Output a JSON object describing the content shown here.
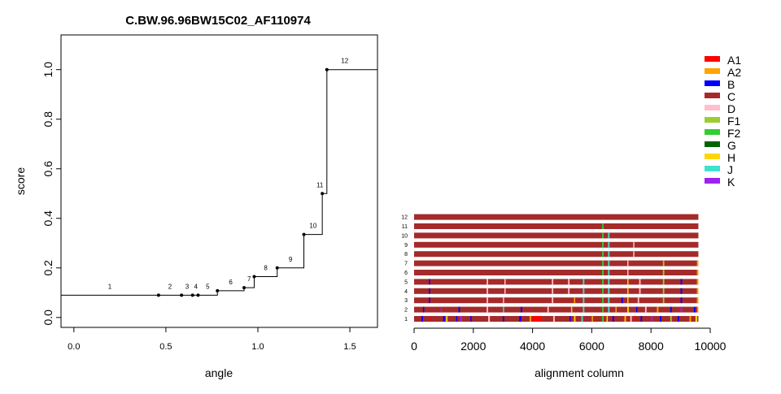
{
  "title": "C.BW.96.96BW15C02_AF110974",
  "colors": {
    "A1": "#ff0000",
    "A2": "#ffa500",
    "B": "#0000ff",
    "C": "#a52a2a",
    "D": "#ffc0cb",
    "F1": "#9acd32",
    "F2": "#32cd32",
    "G": "#006400",
    "H": "#ffd700",
    "J": "#40e0d0",
    "K": "#a020f0"
  },
  "chart_data": [
    {
      "type": "line",
      "step": true,
      "title": "C.BW.96.96BW15C02_AF110974",
      "xlabel": "angle",
      "ylabel": "score",
      "xlim": [
        -0.07,
        1.65
      ],
      "ylim": [
        -0.04,
        1.14
      ],
      "x_ticks": [
        "0.0",
        "0.5",
        "1.0",
        "1.5"
      ],
      "x_tick_values": [
        0.0,
        0.5,
        1.0,
        1.5
      ],
      "y_ticks": [
        "0.0",
        "0.2",
        "0.4",
        "0.6",
        "0.8",
        "1.0"
      ],
      "y_tick_values": [
        0.0,
        0.2,
        0.4,
        0.6,
        0.8,
        1.0
      ],
      "grid": false,
      "points": [
        {
          "label": "1",
          "x": 0.0,
          "y": 0.09
        },
        {
          "label": "2",
          "x": 0.46,
          "y": 0.09
        },
        {
          "label": "3",
          "x": 0.585,
          "y": 0.09
        },
        {
          "label": "4",
          "x": 0.645,
          "y": 0.09
        },
        {
          "label": "5",
          "x": 0.675,
          "y": 0.09
        },
        {
          "label": "6",
          "x": 0.78,
          "y": 0.108
        },
        {
          "label": "7",
          "x": 0.925,
          "y": 0.12
        },
        {
          "label": "8",
          "x": 0.98,
          "y": 0.165
        },
        {
          "label": "9",
          "x": 1.105,
          "y": 0.2
        },
        {
          "label": "10",
          "x": 1.25,
          "y": 0.335
        },
        {
          "label": "11",
          "x": 1.35,
          "y": 0.5
        },
        {
          "label": "12",
          "x": 1.375,
          "y": 1.0
        }
      ],
      "segments": [
        {
          "label": "1",
          "x0": -0.07,
          "x1": 0.46,
          "y": 0.09
        },
        {
          "label": "2",
          "x0": 0.46,
          "x1": 0.585,
          "y": 0.09
        },
        {
          "label": "3",
          "x0": 0.585,
          "x1": 0.645,
          "y": 0.09
        },
        {
          "label": "4",
          "x0": 0.645,
          "x1": 0.675,
          "y": 0.09
        },
        {
          "label": "5",
          "x0": 0.675,
          "x1": 0.78,
          "y": 0.09
        },
        {
          "label": "6",
          "x0": 0.78,
          "x1": 0.925,
          "y": 0.108
        },
        {
          "label": "7",
          "x0": 0.925,
          "x1": 0.98,
          "y": 0.12
        },
        {
          "label": "8",
          "x0": 0.98,
          "x1": 1.105,
          "y": 0.165
        },
        {
          "label": "9",
          "x0": 1.105,
          "x1": 1.25,
          "y": 0.2
        },
        {
          "label": "10",
          "x0": 1.25,
          "x1": 1.35,
          "y": 0.335
        },
        {
          "label": "11",
          "x0": 1.35,
          "x1": 1.375,
          "y": 0.5
        },
        {
          "label": "12",
          "x0": 1.375,
          "x1": 1.65,
          "y": 1.0
        }
      ]
    },
    {
      "type": "heatmap",
      "xlabel": "alignment column",
      "xlim": [
        0,
        10000
      ],
      "x_ticks": [
        "0",
        "2000",
        "4000",
        "6000",
        "8000",
        "10000"
      ],
      "x_tick_values": [
        0,
        2000,
        4000,
        6000,
        8000,
        10000
      ],
      "track_length": 9600,
      "base_subtype": "C",
      "rows": [
        {
          "label": "1",
          "segments": [
            {
              "s": 250,
              "e": 300,
              "t": "B"
            },
            {
              "s": 560,
              "e": 600,
              "t": "A1"
            },
            {
              "s": 980,
              "e": 1040,
              "t": "B"
            },
            {
              "s": 1080,
              "e": 1130,
              "t": "H"
            },
            {
              "s": 1420,
              "e": 1460,
              "t": "B"
            },
            {
              "s": 1550,
              "e": 1620,
              "t": "K"
            },
            {
              "s": 1900,
              "e": 1940,
              "t": "B"
            },
            {
              "s": 2500,
              "e": 2560,
              "t": "D"
            },
            {
              "s": 3000,
              "e": 3040,
              "t": "B"
            },
            {
              "s": 3550,
              "e": 3620,
              "t": "B"
            },
            {
              "s": 3900,
              "e": 3950,
              "t": "A2"
            },
            {
              "s": 4000,
              "e": 4300,
              "t": "A1"
            },
            {
              "s": 4700,
              "e": 4750,
              "t": "D"
            },
            {
              "s": 5250,
              "e": 5290,
              "t": "B"
            },
            {
              "s": 5400,
              "e": 5450,
              "t": "H"
            },
            {
              "s": 5650,
              "e": 5700,
              "t": "J"
            },
            {
              "s": 6000,
              "e": 6040,
              "t": "A2"
            },
            {
              "s": 6350,
              "e": 6400,
              "t": "F2"
            },
            {
              "s": 6500,
              "e": 6540,
              "t": "H"
            },
            {
              "s": 6700,
              "e": 6750,
              "t": "B"
            },
            {
              "s": 7100,
              "e": 7160,
              "t": "A2"
            },
            {
              "s": 7300,
              "e": 7350,
              "t": "D"
            },
            {
              "s": 7450,
              "e": 7500,
              "t": "A1"
            },
            {
              "s": 7650,
              "e": 7700,
              "t": "B"
            },
            {
              "s": 8000,
              "e": 8050,
              "t": "K"
            },
            {
              "s": 8300,
              "e": 8350,
              "t": "B"
            },
            {
              "s": 8650,
              "e": 8700,
              "t": "F1"
            },
            {
              "s": 8900,
              "e": 8950,
              "t": "B"
            },
            {
              "s": 9300,
              "e": 9350,
              "t": "A2"
            },
            {
              "s": 9500,
              "e": 9560,
              "t": "H"
            }
          ]
        },
        {
          "label": "2",
          "segments": [
            {
              "s": 300,
              "e": 340,
              "t": "B"
            },
            {
              "s": 900,
              "e": 940,
              "t": "K"
            },
            {
              "s": 1500,
              "e": 1550,
              "t": "B"
            },
            {
              "s": 2450,
              "e": 2500,
              "t": "D"
            },
            {
              "s": 3000,
              "e": 3040,
              "t": "J"
            },
            {
              "s": 3600,
              "e": 3650,
              "t": "B"
            },
            {
              "s": 4500,
              "e": 4550,
              "t": "D"
            },
            {
              "s": 5300,
              "e": 5340,
              "t": "H"
            },
            {
              "s": 5700,
              "e": 5750,
              "t": "J"
            },
            {
              "s": 6350,
              "e": 6400,
              "t": "F2"
            },
            {
              "s": 6550,
              "e": 6600,
              "t": "J"
            },
            {
              "s": 6800,
              "e": 6840,
              "t": "A2"
            },
            {
              "s": 7200,
              "e": 7250,
              "t": "H"
            },
            {
              "s": 7500,
              "e": 7540,
              "t": "B"
            },
            {
              "s": 7800,
              "e": 7850,
              "t": "D"
            },
            {
              "s": 8200,
              "e": 8250,
              "t": "A2"
            },
            {
              "s": 8650,
              "e": 8700,
              "t": "B"
            },
            {
              "s": 9000,
              "e": 9050,
              "t": "K"
            },
            {
              "s": 9450,
              "e": 9500,
              "t": "B"
            },
            {
              "s": 9560,
              "e": 9600,
              "t": "A2"
            }
          ]
        },
        {
          "label": "3",
          "segments": [
            {
              "s": 500,
              "e": 540,
              "t": "B"
            },
            {
              "s": 2450,
              "e": 2500,
              "t": "D"
            },
            {
              "s": 3000,
              "e": 3040,
              "t": "D"
            },
            {
              "s": 4650,
              "e": 4700,
              "t": "D"
            },
            {
              "s": 5400,
              "e": 5440,
              "t": "A2"
            },
            {
              "s": 5700,
              "e": 5750,
              "t": "J"
            },
            {
              "s": 6350,
              "e": 6400,
              "t": "F2"
            },
            {
              "s": 6550,
              "e": 6600,
              "t": "J"
            },
            {
              "s": 7000,
              "e": 7050,
              "t": "B"
            },
            {
              "s": 7200,
              "e": 7240,
              "t": "H"
            },
            {
              "s": 7550,
              "e": 7600,
              "t": "D"
            },
            {
              "s": 8400,
              "e": 8450,
              "t": "F1"
            },
            {
              "s": 9000,
              "e": 9050,
              "t": "B"
            },
            {
              "s": 9550,
              "e": 9600,
              "t": "A2"
            }
          ]
        },
        {
          "label": "4",
          "segments": [
            {
              "s": 500,
              "e": 540,
              "t": "B"
            },
            {
              "s": 2450,
              "e": 2500,
              "t": "D"
            },
            {
              "s": 3050,
              "e": 3090,
              "t": "D"
            },
            {
              "s": 4650,
              "e": 4700,
              "t": "D"
            },
            {
              "s": 5200,
              "e": 5250,
              "t": "D"
            },
            {
              "s": 5700,
              "e": 5750,
              "t": "J"
            },
            {
              "s": 6350,
              "e": 6400,
              "t": "F2"
            },
            {
              "s": 6550,
              "e": 6600,
              "t": "J"
            },
            {
              "s": 7200,
              "e": 7240,
              "t": "H"
            },
            {
              "s": 7600,
              "e": 7650,
              "t": "D"
            },
            {
              "s": 8400,
              "e": 8450,
              "t": "F1"
            },
            {
              "s": 9000,
              "e": 9050,
              "t": "B"
            },
            {
              "s": 9550,
              "e": 9600,
              "t": "A2"
            }
          ]
        },
        {
          "label": "5",
          "segments": [
            {
              "s": 500,
              "e": 540,
              "t": "B"
            },
            {
              "s": 2450,
              "e": 2500,
              "t": "D"
            },
            {
              "s": 3050,
              "e": 3090,
              "t": "D"
            },
            {
              "s": 4650,
              "e": 4700,
              "t": "D"
            },
            {
              "s": 5200,
              "e": 5250,
              "t": "D"
            },
            {
              "s": 5700,
              "e": 5750,
              "t": "J"
            },
            {
              "s": 6350,
              "e": 6400,
              "t": "F2"
            },
            {
              "s": 6550,
              "e": 6600,
              "t": "J"
            },
            {
              "s": 7200,
              "e": 7240,
              "t": "H"
            },
            {
              "s": 7600,
              "e": 7650,
              "t": "D"
            },
            {
              "s": 8400,
              "e": 8450,
              "t": "F1"
            },
            {
              "s": 9000,
              "e": 9050,
              "t": "B"
            },
            {
              "s": 9550,
              "e": 9600,
              "t": "A2"
            }
          ]
        },
        {
          "label": "6",
          "segments": [
            {
              "s": 6350,
              "e": 6400,
              "t": "F2"
            },
            {
              "s": 6550,
              "e": 6600,
              "t": "J"
            },
            {
              "s": 7200,
              "e": 7240,
              "t": "D"
            },
            {
              "s": 8400,
              "e": 8450,
              "t": "F1"
            },
            {
              "s": 9550,
              "e": 9600,
              "t": "A2"
            }
          ]
        },
        {
          "label": "7",
          "segments": [
            {
              "s": 6350,
              "e": 6400,
              "t": "F2"
            },
            {
              "s": 6550,
              "e": 6600,
              "t": "J"
            },
            {
              "s": 7200,
              "e": 7240,
              "t": "D"
            },
            {
              "s": 8400,
              "e": 8450,
              "t": "F1"
            },
            {
              "s": 9550,
              "e": 9600,
              "t": "A2"
            }
          ]
        },
        {
          "label": "8",
          "segments": [
            {
              "s": 6350,
              "e": 6400,
              "t": "F2"
            },
            {
              "s": 6550,
              "e": 6600,
              "t": "J"
            },
            {
              "s": 7400,
              "e": 7440,
              "t": "D"
            }
          ]
        },
        {
          "label": "9",
          "segments": [
            {
              "s": 6350,
              "e": 6400,
              "t": "F2"
            },
            {
              "s": 6550,
              "e": 6600,
              "t": "J"
            },
            {
              "s": 7400,
              "e": 7440,
              "t": "D"
            }
          ]
        },
        {
          "label": "10",
          "segments": [
            {
              "s": 6350,
              "e": 6400,
              "t": "F2"
            },
            {
              "s": 6550,
              "e": 6600,
              "t": "J"
            }
          ]
        },
        {
          "label": "11",
          "segments": [
            {
              "s": 6350,
              "e": 6400,
              "t": "F2"
            }
          ]
        },
        {
          "label": "12",
          "segments": []
        }
      ],
      "legend_placement": "top-right",
      "legend": [
        {
          "name": "A1",
          "color": "#ff0000"
        },
        {
          "name": "A2",
          "color": "#ffa500"
        },
        {
          "name": "B",
          "color": "#0000ff"
        },
        {
          "name": "C",
          "color": "#a52a2a"
        },
        {
          "name": "D",
          "color": "#ffc0cb"
        },
        {
          "name": "F1",
          "color": "#9acd32"
        },
        {
          "name": "F2",
          "color": "#32cd32"
        },
        {
          "name": "G",
          "color": "#006400"
        },
        {
          "name": "H",
          "color": "#ffd700"
        },
        {
          "name": "J",
          "color": "#40e0d0"
        },
        {
          "name": "K",
          "color": "#a020f0"
        }
      ]
    }
  ]
}
